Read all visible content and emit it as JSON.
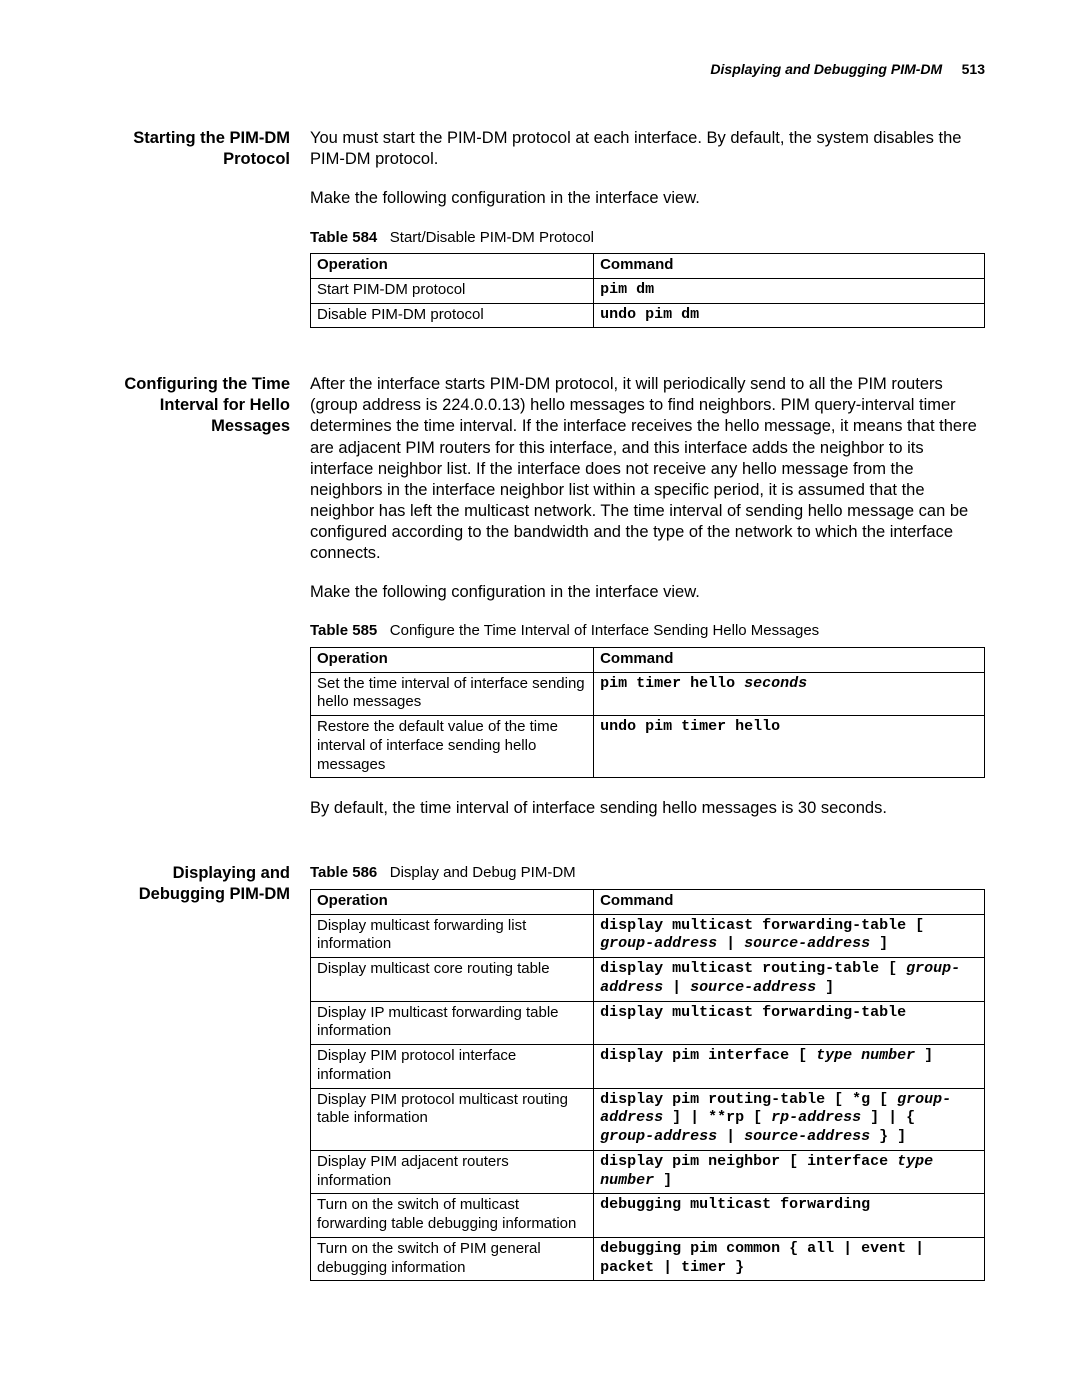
{
  "header": {
    "title": "Displaying and Debugging PIM-DM",
    "page_number": "513"
  },
  "sections": [
    {
      "label": "Starting the PIM-DM Protocol",
      "paragraphs": [
        "You must start the PIM-DM protocol at each interface. By default, the system disables the PIM-DM protocol.",
        "Make the following configuration in the interface view."
      ],
      "table": {
        "number": "Table 584",
        "title": "Start/Disable PIM-DM Protocol",
        "headers": [
          "Operation",
          "Command"
        ],
        "rows": [
          {
            "op": "Start PIM-DM protocol",
            "cmd": [
              {
                "t": "pim dm",
                "i": false
              }
            ]
          },
          {
            "op": "Disable PIM-DM protocol",
            "cmd": [
              {
                "t": "undo pim dm",
                "i": false
              }
            ]
          }
        ]
      }
    },
    {
      "label": "Configuring the Time Interval for Hello Messages",
      "paragraphs": [
        "After the interface starts PIM-DM protocol, it will periodically send to all the PIM routers (group address is 224.0.0.13) hello messages to find neighbors. PIM query-interval timer determines the time interval. If the interface receives the hello message, it means that there are adjacent PIM routers for this interface, and this interface adds the neighbor to its interface neighbor list. If the interface does not receive any hello message from the neighbors in the interface neighbor list within a specific period, it is assumed that the neighbor has left the multicast network. The time interval of sending hello message can be configured according to the bandwidth and the type of the network to which the interface connects.",
        "Make the following configuration in the interface view."
      ],
      "table": {
        "number": "Table 585",
        "title": "Configure the Time Interval of Interface Sending Hello Messages",
        "headers": [
          "Operation",
          "Command"
        ],
        "rows": [
          {
            "op": "Set the time interval of interface sending hello messages",
            "cmd": [
              {
                "t": "pim timer hello ",
                "i": false
              },
              {
                "t": "seconds",
                "i": true
              }
            ]
          },
          {
            "op": "Restore the default value of the time interval of interface sending hello messages",
            "cmd": [
              {
                "t": "undo pim timer hello",
                "i": false
              }
            ]
          }
        ]
      },
      "post_paragraphs": [
        "By default, the time interval of interface sending hello messages is 30 seconds."
      ]
    },
    {
      "label": "Displaying and Debugging PIM-DM",
      "paragraphs": [],
      "table": {
        "number": "Table 586",
        "title": "Display and Debug PIM-DM",
        "headers": [
          "Operation",
          "Command"
        ],
        "rows": [
          {
            "op": "Display multicast forwarding list information",
            "cmd": [
              {
                "t": "display multicast forwarding-table [ ",
                "i": false
              },
              {
                "t": "group-address",
                "i": true
              },
              {
                "t": " | ",
                "i": false
              },
              {
                "t": "source-address",
                "i": true
              },
              {
                "t": " ]",
                "i": false
              }
            ]
          },
          {
            "op": "Display multicast core routing table",
            "cmd": [
              {
                "t": "display multicast routing-table [ ",
                "i": false
              },
              {
                "t": "group-address",
                "i": true
              },
              {
                "t": " | ",
                "i": false
              },
              {
                "t": "source-address",
                "i": true
              },
              {
                "t": " ]",
                "i": false
              }
            ]
          },
          {
            "op": "Display IP multicast forwarding table information",
            "cmd": [
              {
                "t": "display multicast forwarding-table",
                "i": false
              }
            ]
          },
          {
            "op": "Display PIM protocol interface information",
            "cmd": [
              {
                "t": "display pim interface [ ",
                "i": false
              },
              {
                "t": "type number",
                "i": true
              },
              {
                "t": " ]",
                "i": false
              }
            ]
          },
          {
            "op": "Display PIM protocol multicast routing table information",
            "cmd": [
              {
                "t": "display pim routing-table [ *g [ ",
                "i": false
              },
              {
                "t": "group-address",
                "i": true
              },
              {
                "t": " ] | **rp [ ",
                "i": false
              },
              {
                "t": "rp-address",
                "i": true
              },
              {
                "t": " ] | { ",
                "i": false
              },
              {
                "t": "group-address",
                "i": true
              },
              {
                "t": " | ",
                "i": false
              },
              {
                "t": "source-address",
                "i": true
              },
              {
                "t": " } ]",
                "i": false
              }
            ]
          },
          {
            "op": "Display PIM adjacent routers information",
            "cmd": [
              {
                "t": "display pim neighbor [ interface ",
                "i": false
              },
              {
                "t": "type number",
                "i": true
              },
              {
                "t": " ]",
                "i": false
              }
            ]
          },
          {
            "op": "Turn on the switch of multicast forwarding table debugging information",
            "cmd": [
              {
                "t": "debugging multicast forwarding",
                "i": false
              }
            ]
          },
          {
            "op": "Turn on the switch of PIM general debugging information",
            "cmd": [
              {
                "t": "debugging pim common { all | event | packet | timer }",
                "i": false
              }
            ]
          }
        ]
      }
    }
  ]
}
